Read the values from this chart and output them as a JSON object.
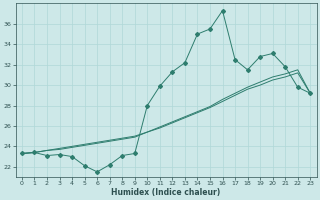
{
  "xlabel": "Humidex (Indice chaleur)",
  "x_values": [
    0,
    1,
    2,
    3,
    4,
    5,
    6,
    7,
    8,
    9,
    10,
    11,
    12,
    13,
    14,
    15,
    16,
    17,
    18,
    19,
    20,
    21,
    22,
    23
  ],
  "y_main": [
    23.3,
    23.4,
    23.1,
    23.2,
    23.0,
    22.1,
    21.5,
    22.2,
    23.1,
    23.3,
    28.0,
    29.9,
    31.3,
    32.2,
    35.0,
    35.5,
    37.3,
    32.5,
    31.5,
    32.8,
    33.1,
    31.8,
    29.8,
    29.2
  ],
  "y_line1": [
    23.3,
    23.4,
    23.6,
    23.7,
    23.9,
    24.1,
    24.3,
    24.5,
    24.7,
    24.9,
    25.4,
    25.9,
    26.4,
    26.9,
    27.4,
    27.9,
    28.6,
    29.2,
    29.8,
    30.3,
    30.8,
    31.1,
    31.5,
    29.2
  ],
  "y_line2": [
    23.3,
    23.4,
    23.6,
    23.8,
    24.0,
    24.2,
    24.4,
    24.6,
    24.8,
    25.0,
    25.4,
    25.8,
    26.3,
    26.8,
    27.3,
    27.8,
    28.4,
    29.0,
    29.6,
    30.0,
    30.5,
    30.8,
    31.2,
    29.2
  ],
  "line_color": "#2e7d6e",
  "bg_color": "#cde8e8",
  "grid_color": "#b0d8d8",
  "ylim": [
    21.0,
    38.0
  ],
  "yticks": [
    22,
    24,
    26,
    28,
    30,
    32,
    34,
    36
  ],
  "xlim": [
    -0.5,
    23.5
  ],
  "xticks": [
    0,
    1,
    2,
    3,
    4,
    5,
    6,
    7,
    8,
    9,
    10,
    11,
    12,
    13,
    14,
    15,
    16,
    17,
    18,
    19,
    20,
    21,
    22,
    23
  ]
}
